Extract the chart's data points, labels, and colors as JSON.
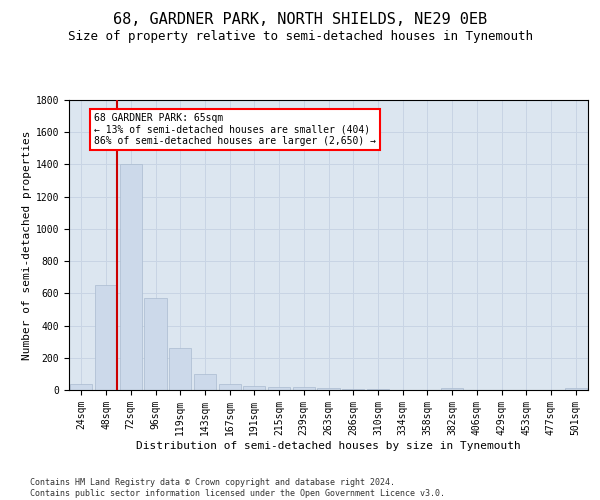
{
  "title": "68, GARDNER PARK, NORTH SHIELDS, NE29 0EB",
  "subtitle": "Size of property relative to semi-detached houses in Tynemouth",
  "xlabel": "Distribution of semi-detached houses by size in Tynemouth",
  "ylabel": "Number of semi-detached properties",
  "categories": [
    "24sqm",
    "48sqm",
    "72sqm",
    "96sqm",
    "119sqm",
    "143sqm",
    "167sqm",
    "191sqm",
    "215sqm",
    "239sqm",
    "263sqm",
    "286sqm",
    "310sqm",
    "334sqm",
    "358sqm",
    "382sqm",
    "406sqm",
    "429sqm",
    "453sqm",
    "477sqm",
    "501sqm"
  ],
  "values": [
    35,
    650,
    1400,
    570,
    260,
    100,
    35,
    25,
    20,
    20,
    15,
    8,
    5,
    0,
    0,
    10,
    0,
    0,
    0,
    0,
    10
  ],
  "bar_color": "#ccd9ea",
  "bar_edge_color": "#aabbd0",
  "vline_color": "#cc0000",
  "vline_xidx": 1.45,
  "annotation_text": "68 GARDNER PARK: 65sqm\n← 13% of semi-detached houses are smaller (404)\n86% of semi-detached houses are larger (2,650) →",
  "ylim": [
    0,
    1800
  ],
  "yticks": [
    0,
    200,
    400,
    600,
    800,
    1000,
    1200,
    1400,
    1600,
    1800
  ],
  "grid_color": "#c8d4e4",
  "bg_color": "#dce6f0",
  "footer": "Contains HM Land Registry data © Crown copyright and database right 2024.\nContains public sector information licensed under the Open Government Licence v3.0.",
  "title_fontsize": 11,
  "subtitle_fontsize": 9,
  "annot_fontsize": 7,
  "tick_fontsize": 7,
  "label_fontsize": 8,
  "footer_fontsize": 6
}
